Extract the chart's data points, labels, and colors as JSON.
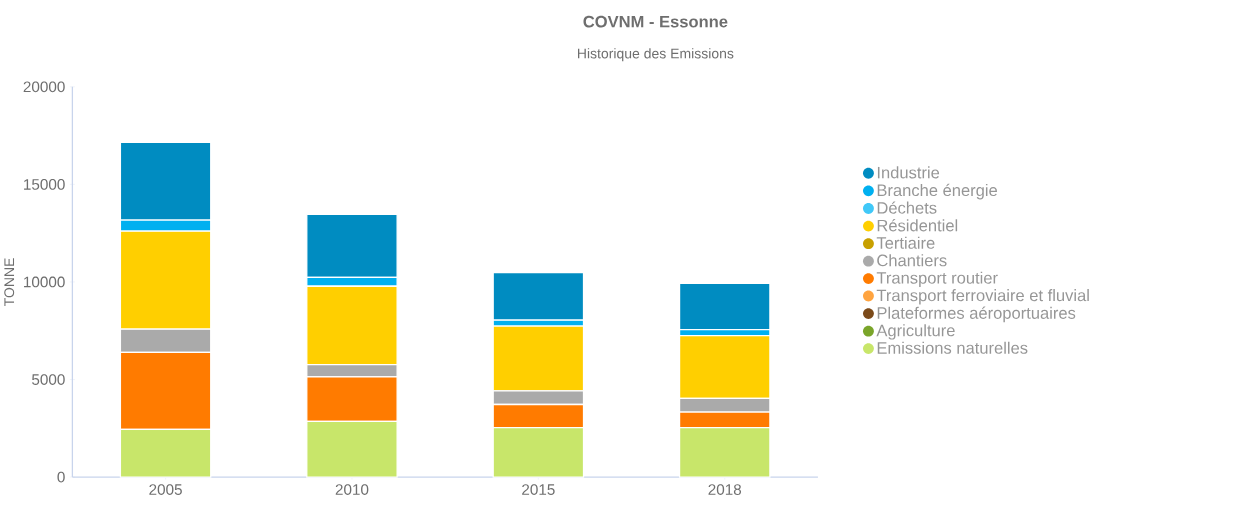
{
  "chart_data": {
    "type": "bar",
    "title": "COVNM - Essonne",
    "subtitle": "Historique des Emissions",
    "ylabel": "TONNE",
    "categories": [
      "2005",
      "2010",
      "2015",
      "2018"
    ],
    "stacked": true,
    "legend": "right",
    "ylim": [
      0,
      20000
    ],
    "yticks": [
      0,
      5000,
      10000,
      15000,
      20000
    ],
    "series": [
      {
        "name": "Emissions naturelles",
        "color": "#c8e66a",
        "values": [
          2450,
          2850,
          2530,
          2530
        ]
      },
      {
        "name": "Agriculture",
        "color": "#7aa52a",
        "values": [
          null,
          null,
          null,
          null
        ]
      },
      {
        "name": "Plateformes aéroportuaires",
        "color": "#7b4a1a",
        "values": [
          null,
          null,
          null,
          null
        ]
      },
      {
        "name": "Transport ferroviaire et fluvial",
        "color": "#ffa440",
        "values": [
          null,
          null,
          null,
          null
        ]
      },
      {
        "name": "Transport routier",
        "color": "#ff7b00",
        "values": [
          3940,
          2280,
          1190,
          800
        ]
      },
      {
        "name": "Chantiers",
        "color": "#aaaaaa",
        "values": [
          1190,
          630,
          700,
          700
        ]
      },
      {
        "name": "Tertiaire",
        "color": "#c8a000",
        "values": [
          null,
          null,
          null,
          null
        ]
      },
      {
        "name": "Résidentiel",
        "color": "#ffcf00",
        "values": [
          5020,
          4020,
          3320,
          3220
        ]
      },
      {
        "name": "Déchets",
        "color": "#40c8f8",
        "values": [
          null,
          null,
          null,
          null
        ]
      },
      {
        "name": "Branche énergie",
        "color": "#00b0f0",
        "values": [
          570,
          460,
          300,
          310
        ]
      },
      {
        "name": "Industrie",
        "color": "#008cc1",
        "values": [
          3990,
          3220,
          2440,
          2370
        ]
      }
    ]
  }
}
